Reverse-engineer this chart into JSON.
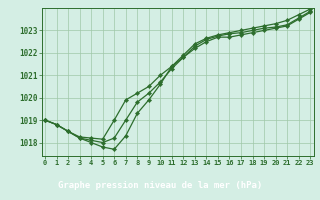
{
  "title": "Graphe pression niveau de la mer (hPa)",
  "hours": [
    0,
    1,
    2,
    3,
    4,
    5,
    6,
    7,
    8,
    9,
    10,
    11,
    12,
    13,
    14,
    15,
    16,
    17,
    18,
    19,
    20,
    21,
    22,
    23
  ],
  "line1": [
    1019.0,
    1018.8,
    1018.5,
    1018.2,
    1018.0,
    1017.8,
    1017.7,
    1018.3,
    1019.3,
    1019.9,
    1020.6,
    1021.4,
    1021.8,
    1022.2,
    1022.5,
    1022.7,
    1022.7,
    1022.8,
    1022.9,
    1023.0,
    1023.1,
    1023.2,
    1023.5,
    1023.8
  ],
  "line2": [
    1019.0,
    1018.8,
    1018.5,
    1018.2,
    1018.1,
    1018.0,
    1018.2,
    1019.0,
    1019.8,
    1020.2,
    1020.7,
    1021.3,
    1021.8,
    1022.3,
    1022.6,
    1022.75,
    1022.85,
    1022.9,
    1023.0,
    1023.1,
    1023.15,
    1023.25,
    1023.55,
    1023.85
  ],
  "line3": [
    1019.0,
    1018.8,
    1018.5,
    1018.25,
    1018.2,
    1018.15,
    1019.0,
    1019.9,
    1020.2,
    1020.5,
    1021.0,
    1021.4,
    1021.9,
    1022.4,
    1022.65,
    1022.8,
    1022.9,
    1023.0,
    1023.1,
    1023.2,
    1023.3,
    1023.45,
    1023.7,
    1023.95
  ],
  "ylim": [
    1017.4,
    1024.0
  ],
  "yticks": [
    1018,
    1019,
    1020,
    1021,
    1022,
    1023
  ],
  "xlim": [
    -0.3,
    23.3
  ],
  "line_color": "#2d6e2d",
  "bg_color": "#d4eee4",
  "grid_color": "#a0c8a8",
  "title_bg": "#2d6e2d",
  "title_color": "#ffffff",
  "title_fontsize": 6.5,
  "tick_fontsize": 5.0,
  "ytick_fontsize": 5.5
}
